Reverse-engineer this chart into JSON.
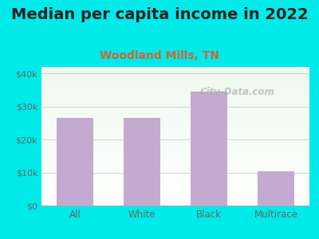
{
  "title": "Median per capita income in 2022",
  "subtitle": "Woodland Mills, TN",
  "categories": [
    "All",
    "White",
    "Black",
    "Multirace"
  ],
  "values": [
    26500,
    26500,
    34500,
    10500
  ],
  "bar_color": "#c4aad0",
  "title_fontsize": 14,
  "subtitle_fontsize": 10,
  "title_color": "#222222",
  "subtitle_color": "#cc6633",
  "tick_color": "#666666",
  "background_outer": "#00eaea",
  "ylim": [
    0,
    42000
  ],
  "yticks": [
    0,
    10000,
    20000,
    30000,
    40000
  ],
  "ytick_labels": [
    "$0",
    "$10k",
    "$20k",
    "$30k",
    "$40k"
  ],
  "watermark": "City-Data.com",
  "grid_color": "#cccccc"
}
